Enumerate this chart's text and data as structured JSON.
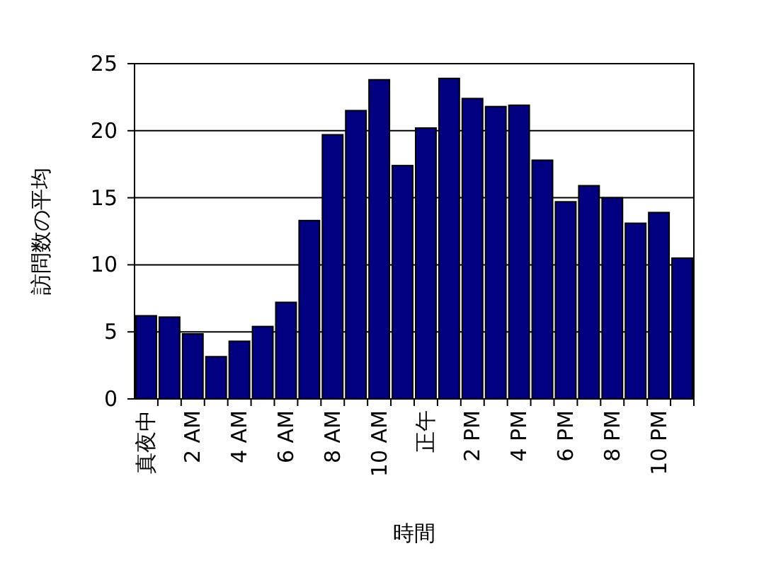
{
  "chart_data": {
    "type": "bar",
    "xlabel": "時間",
    "ylabel": "訪問数の平均",
    "categories": [
      "真夜中",
      null,
      "2 AM",
      null,
      "4 AM",
      null,
      "6 AM",
      null,
      "8 AM",
      null,
      "10 AM",
      null,
      "正午",
      null,
      "2 PM",
      null,
      "4 PM",
      null,
      "6 PM",
      null,
      "8 PM",
      null,
      "10 PM",
      null
    ],
    "values": [
      6.2,
      6.1,
      4.85,
      3.15,
      4.3,
      5.4,
      7.2,
      13.3,
      19.7,
      21.5,
      23.8,
      17.4,
      20.2,
      23.9,
      22.4,
      21.8,
      21.9,
      17.8,
      14.7,
      15.9,
      15.0,
      13.1,
      13.9,
      10.5
    ],
    "color": "#000080",
    "ylim": [
      0,
      25
    ],
    "yticks": [
      0,
      5,
      10,
      15,
      20,
      25
    ],
    "grid": "y"
  }
}
